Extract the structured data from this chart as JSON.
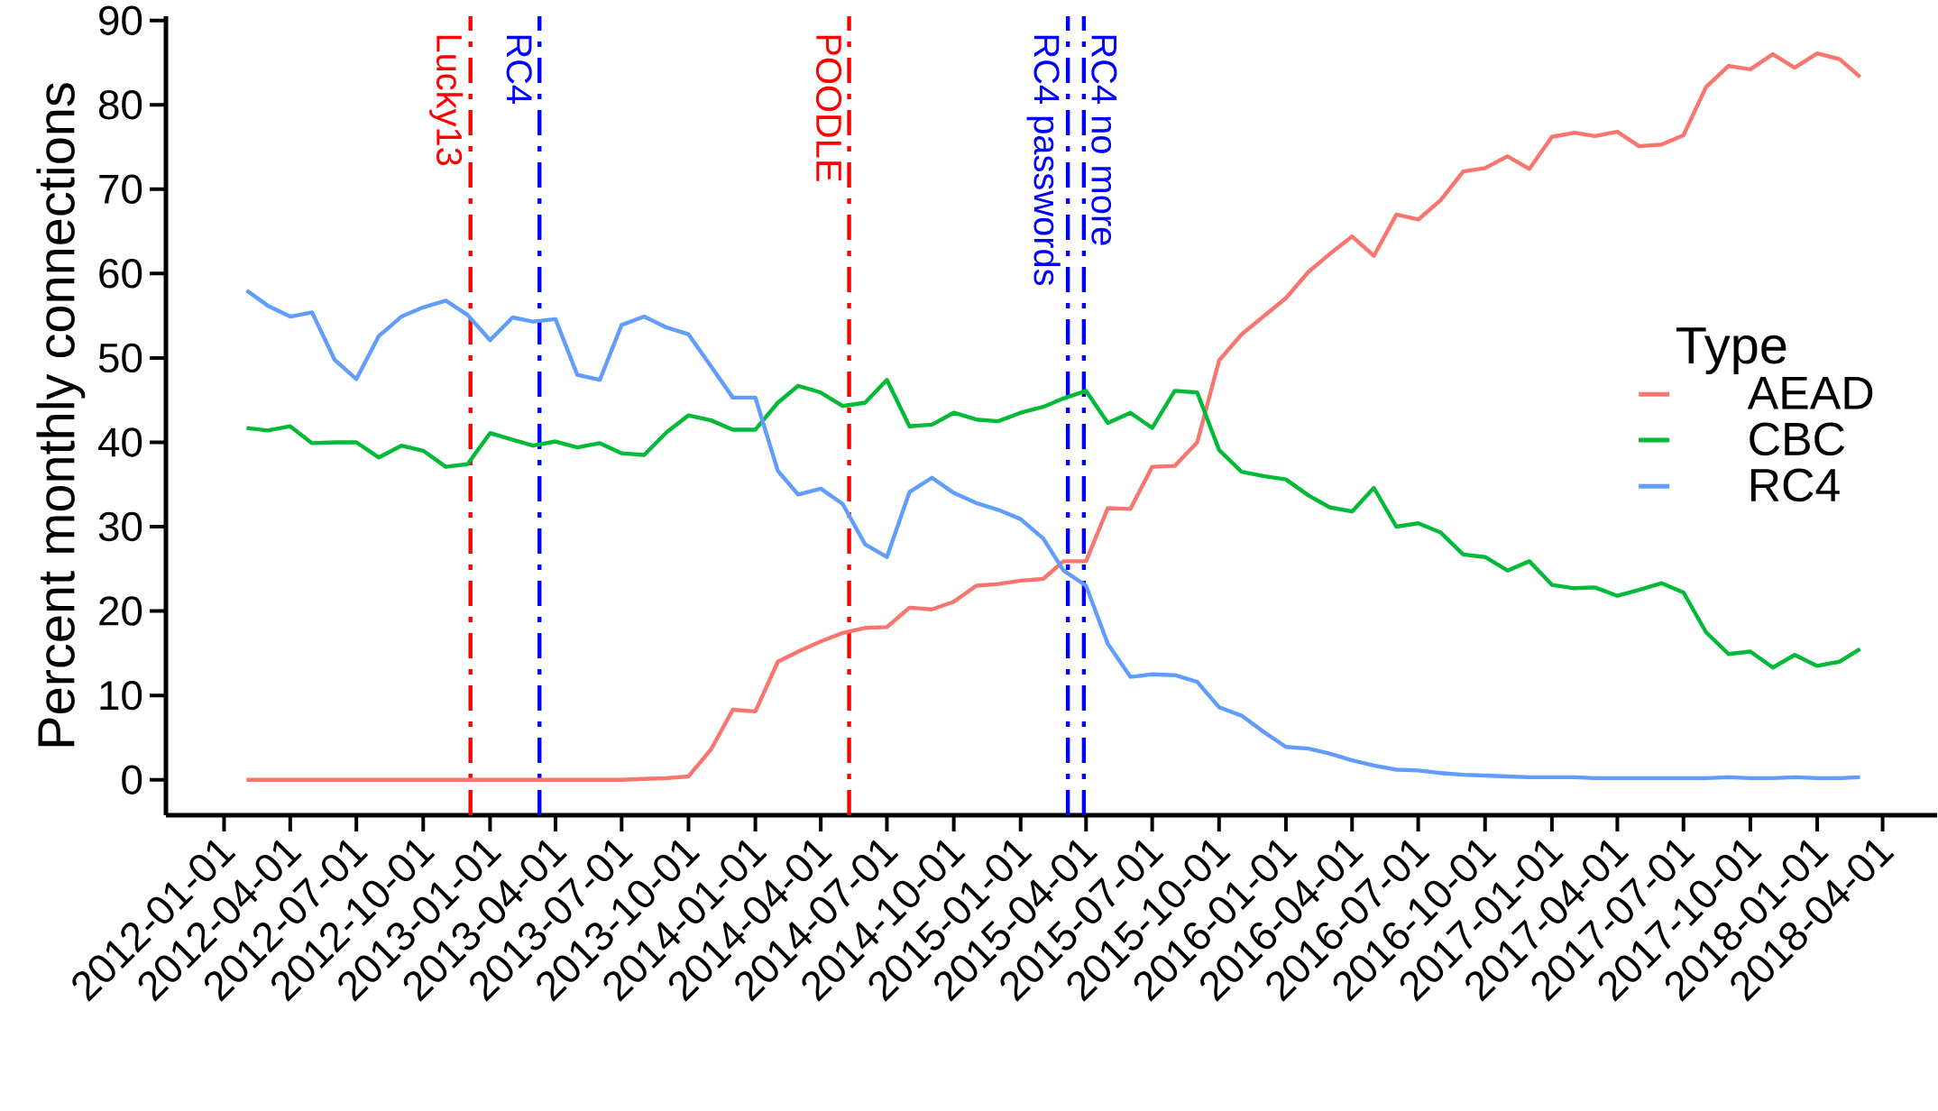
{
  "chart_data": {
    "type": "line",
    "ylabel": "Percent monthly connections",
    "legend_title": "Type",
    "legend": "right",
    "line_style": "solid",
    "x": [
      "2012-02",
      "2012-03",
      "2012-04",
      "2012-05",
      "2012-06",
      "2012-07",
      "2012-08",
      "2012-09",
      "2012-10",
      "2012-11",
      "2012-12",
      "2013-01",
      "2013-02",
      "2013-03",
      "2013-04",
      "2013-05",
      "2013-06",
      "2013-07",
      "2013-08",
      "2013-09",
      "2013-10",
      "2013-11",
      "2013-12",
      "2014-01",
      "2014-02",
      "2014-03",
      "2014-04",
      "2014-05",
      "2014-06",
      "2014-07",
      "2014-08",
      "2014-09",
      "2014-10",
      "2014-11",
      "2014-12",
      "2015-01",
      "2015-02",
      "2015-03",
      "2015-04",
      "2015-05",
      "2015-06",
      "2015-07",
      "2015-08",
      "2015-09",
      "2015-10",
      "2015-11",
      "2015-12",
      "2016-01",
      "2016-02",
      "2016-03",
      "2016-04",
      "2016-05",
      "2016-06",
      "2016-07",
      "2016-08",
      "2016-09",
      "2016-10",
      "2016-11",
      "2016-12",
      "2017-01",
      "2017-02",
      "2017-03",
      "2017-04",
      "2017-05",
      "2017-06",
      "2017-07",
      "2017-08",
      "2017-09",
      "2017-10",
      "2017-11",
      "2017-12",
      "2018-01",
      "2018-02",
      "2018-03"
    ],
    "series": [
      {
        "name": "AEAD",
        "color": "#f8766d",
        "values": [
          0,
          0,
          0,
          0,
          0,
          0,
          0,
          0,
          0,
          0,
          0,
          0,
          0,
          0,
          0,
          0,
          0,
          0,
          0.1,
          0.2,
          0.4,
          3.6,
          8.3,
          8.1,
          14.0,
          15.2,
          16.4,
          17.4,
          18.0,
          18.1,
          20.4,
          20.2,
          21.1,
          23.0,
          23.2,
          23.6,
          23.8,
          25.9,
          25.9,
          32.2,
          32.1,
          37.1,
          37.2,
          40.0,
          49.7,
          52.8,
          54.9,
          57.1,
          60.2,
          62.3,
          64.4,
          62.1,
          67.0,
          66.4,
          68.7,
          72.1,
          72.5,
          73.9,
          72.4,
          76.2,
          76.7,
          76.3,
          76.8,
          75.1,
          75.3,
          76.4,
          82.1,
          84.6,
          84.2,
          86.0,
          84.4,
          86.1,
          85.4,
          83.3
        ]
      },
      {
        "name": "CBC",
        "color": "#00ba38",
        "values": [
          41.7,
          41.4,
          41.9,
          39.9,
          40.0,
          40.0,
          38.2,
          39.6,
          39.0,
          37.1,
          37.4,
          41.1,
          40.3,
          39.6,
          40.1,
          39.4,
          39.9,
          38.7,
          38.5,
          41.2,
          43.2,
          42.6,
          41.5,
          41.5,
          44.7,
          46.7,
          45.9,
          44.3,
          44.7,
          47.4,
          41.9,
          42.1,
          43.5,
          42.7,
          42.5,
          43.5,
          44.2,
          45.2,
          46.1,
          42.3,
          43.5,
          41.7,
          46.1,
          45.9,
          39.1,
          36.5,
          36.0,
          35.6,
          33.7,
          32.3,
          31.8,
          34.6,
          30.0,
          30.4,
          29.3,
          26.7,
          26.4,
          24.8,
          25.9,
          23.1,
          22.7,
          22.8,
          21.8,
          22.5,
          23.3,
          22.2,
          17.5,
          14.9,
          15.2,
          13.3,
          14.8,
          13.5,
          14.0,
          15.5
        ]
      },
      {
        "name": "RC4",
        "color": "#619cff",
        "values": [
          58.0,
          56.2,
          54.9,
          55.4,
          49.8,
          47.5,
          52.6,
          54.9,
          56.0,
          56.8,
          55.1,
          52.1,
          54.8,
          54.3,
          54.6,
          48.0,
          47.4,
          53.9,
          54.9,
          53.6,
          52.8,
          49.0,
          45.3,
          45.3,
          36.6,
          33.8,
          34.5,
          32.7,
          27.9,
          26.4,
          34.1,
          35.8,
          34.0,
          32.8,
          32.0,
          30.9,
          28.6,
          24.8,
          23.0,
          16.1,
          12.2,
          12.5,
          12.4,
          11.6,
          8.6,
          7.6,
          5.7,
          3.9,
          3.7,
          3.1,
          2.3,
          1.7,
          1.2,
          1.1,
          0.8,
          0.6,
          0.5,
          0.4,
          0.3,
          0.3,
          0.3,
          0.2,
          0.2,
          0.2,
          0.2,
          0.2,
          0.2,
          0.3,
          0.2,
          0.2,
          0.3,
          0.2,
          0.2,
          0.3
        ]
      }
    ],
    "ref_lines": [
      {
        "axis": "x",
        "value": "2012-12-05",
        "label": "Lucky13",
        "color": "#ff0000",
        "line_style": "dashdot"
      },
      {
        "axis": "x",
        "value": "2013-03-10",
        "label": "RC4",
        "color": "#0000ff",
        "line_style": "dashdot"
      },
      {
        "axis": "x",
        "value": "2014-05-10",
        "label": "POODLE",
        "color": "#ff0000",
        "line_style": "dashdot"
      },
      {
        "axis": "x",
        "value": "2015-03-07",
        "label": "RC4 passwords",
        "color": "#0000ff",
        "line_style": "dashdot"
      },
      {
        "axis": "x",
        "value": "2015-03-29",
        "label": "RC4 no more",
        "color": "#0000ff",
        "line_style": "dashdot"
      }
    ],
    "xlim": [
      "2011-10-13",
      "2018-06-15"
    ],
    "ylim": [
      -4.2,
      90.5
    ],
    "xticks": [
      "2012-01-01",
      "2012-04-01",
      "2012-07-01",
      "2012-10-01",
      "2013-01-01",
      "2013-04-01",
      "2013-07-01",
      "2013-10-01",
      "2014-01-01",
      "2014-04-01",
      "2014-07-01",
      "2014-10-01",
      "2015-01-01",
      "2015-04-01",
      "2015-07-01",
      "2015-10-01",
      "2016-01-01",
      "2016-04-01",
      "2016-07-01",
      "2016-10-01",
      "2017-01-01",
      "2017-04-01",
      "2017-07-01",
      "2017-10-01",
      "2018-01-01",
      "2018-04-01"
    ],
    "yticks": [
      0,
      10,
      20,
      30,
      40,
      50,
      60,
      70,
      80,
      90
    ]
  }
}
